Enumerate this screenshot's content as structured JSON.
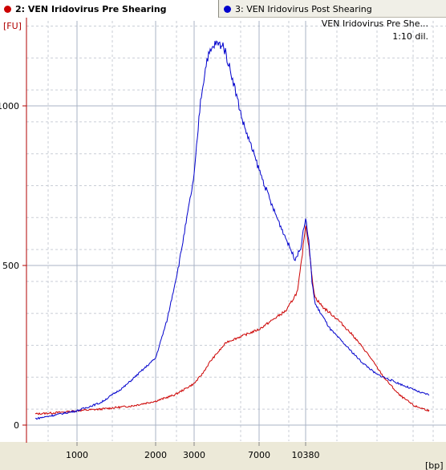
{
  "tabs": [
    {
      "label": "2: VEN Iridovirus Pre Shearing",
      "color": "#cc0000",
      "active": true
    },
    {
      "label": "3: VEN Iridovirus Post Shearing",
      "color": "#0000cc",
      "active": false
    }
  ],
  "colors": {
    "axis": "#b00000",
    "grid_major": "#a9b3c5",
    "grid_minor": "#c9ced6",
    "bottom_band": "#ece9d8"
  },
  "chart_data": {
    "type": "line",
    "ylabel": "[FU]",
    "xlabel": "[bp]",
    "annotations": [
      "VEN Iridovirus Pre She...",
      "1:10 dil."
    ],
    "y_ticks": [
      0,
      500,
      1000
    ],
    "x_ticks": [
      1000,
      2000,
      3000,
      7000,
      10380
    ],
    "ylim": [
      -30,
      1230
    ],
    "x_scale": "size ladder (non-linear)",
    "grid": true,
    "series": [
      {
        "name": "2: VEN Iridovirus Pre Shearing",
        "color": "#cc0000",
        "points": [
          [
            500,
            35
          ],
          [
            700,
            38
          ],
          [
            900,
            42
          ],
          [
            1000,
            45
          ],
          [
            1300,
            50
          ],
          [
            1700,
            60
          ],
          [
            2000,
            75
          ],
          [
            2500,
            95
          ],
          [
            3000,
            130
          ],
          [
            3500,
            160
          ],
          [
            4000,
            200
          ],
          [
            4500,
            230
          ],
          [
            5000,
            260
          ],
          [
            6000,
            280
          ],
          [
            7000,
            300
          ],
          [
            8000,
            330
          ],
          [
            9000,
            360
          ],
          [
            9800,
            420
          ],
          [
            10100,
            520
          ],
          [
            10380,
            630
          ],
          [
            10600,
            560
          ],
          [
            10800,
            460
          ],
          [
            11000,
            400
          ],
          [
            11500,
            370
          ],
          [
            12500,
            330
          ],
          [
            13500,
            280
          ],
          [
            14500,
            220
          ],
          [
            15500,
            150
          ],
          [
            16500,
            95
          ],
          [
            17500,
            60
          ],
          [
            18500,
            45
          ]
        ]
      },
      {
        "name": "3: VEN Iridovirus Post Shearing",
        "color": "#0000cc",
        "points": [
          [
            500,
            20
          ],
          [
            700,
            30
          ],
          [
            1000,
            45
          ],
          [
            1300,
            70
          ],
          [
            1600,
            120
          ],
          [
            2000,
            210
          ],
          [
            2300,
            330
          ],
          [
            2600,
            500
          ],
          [
            3000,
            780
          ],
          [
            3400,
            1020
          ],
          [
            3800,
            1150
          ],
          [
            4300,
            1195
          ],
          [
            4800,
            1190
          ],
          [
            5300,
            1100
          ],
          [
            6000,
            950
          ],
          [
            7000,
            800
          ],
          [
            8000,
            680
          ],
          [
            9000,
            580
          ],
          [
            9600,
            520
          ],
          [
            10000,
            550
          ],
          [
            10380,
            650
          ],
          [
            10600,
            570
          ],
          [
            10800,
            450
          ],
          [
            11000,
            380
          ],
          [
            12000,
            300
          ],
          [
            13000,
            250
          ],
          [
            14000,
            200
          ],
          [
            15000,
            160
          ],
          [
            16000,
            140
          ],
          [
            17000,
            120
          ],
          [
            18000,
            100
          ],
          [
            18500,
            95
          ]
        ]
      }
    ]
  }
}
